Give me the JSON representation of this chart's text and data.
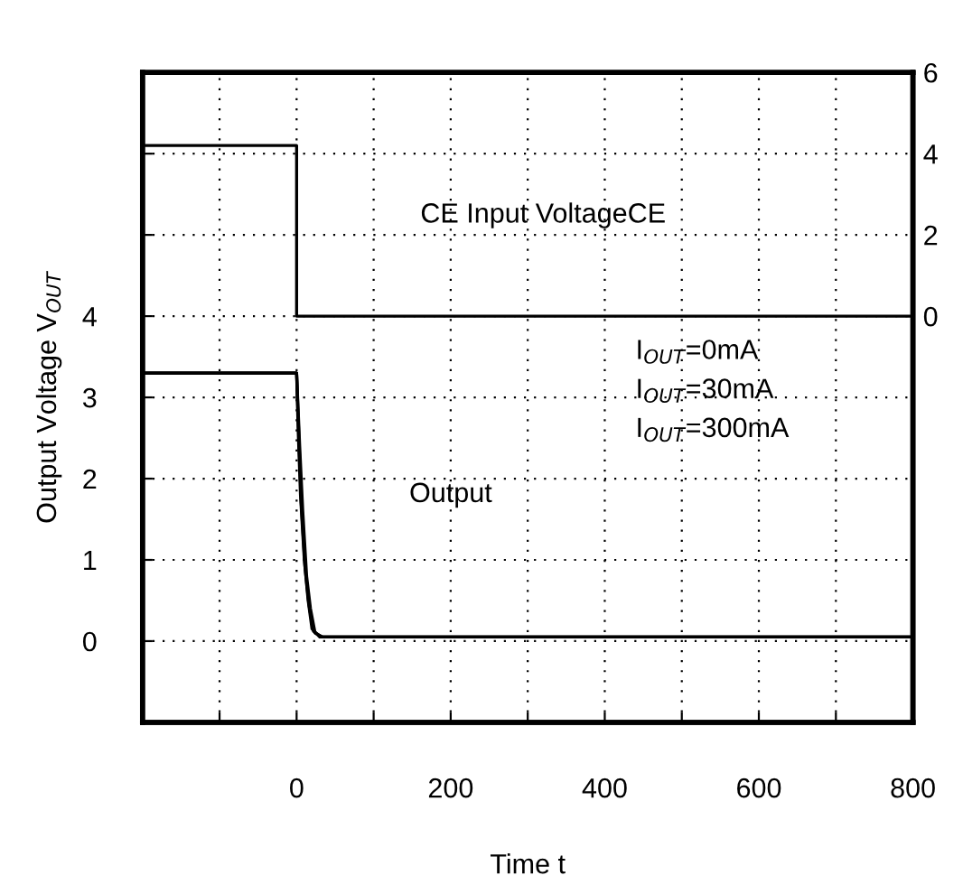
{
  "chart_data": {
    "type": "line",
    "xlabel": "Time t",
    "ylabel": "Output Voltage V$_{OUT}$",
    "series": [
      {
        "color": "#000000",
        "x": [
          -200,
          0,
          2,
          5,
          10,
          15,
          20,
          30,
          800
        ],
        "values": [
          3.3,
          3.3,
          2.6,
          1.8,
          1.0,
          0.5,
          0.15,
          0.05,
          0.05
        ]
      },
      {
        "color": "#000000",
        "x": [
          -200,
          0,
          3,
          6,
          11,
          16,
          22,
          32,
          800
        ],
        "values": [
          3.3,
          3.3,
          2.5,
          1.7,
          0.9,
          0.45,
          0.12,
          0.05,
          0.05
        ]
      },
      {
        "color": "#000000",
        "x": [
          -200,
          0,
          4,
          8,
          13,
          18,
          24,
          34,
          800
        ],
        "values": [
          3.3,
          3.3,
          2.4,
          1.6,
          0.8,
          0.4,
          0.1,
          0.05,
          0.05
        ]
      },
      {
        "color": "#000000",
        "axis": "y2",
        "x": [
          -200,
          0,
          0,
          800
        ],
        "values": [
          4.2,
          4.2,
          0,
          0
        ]
      }
    ],
    "xlim": [
      -200,
      800
    ],
    "xticks": [
      {
        "value": -200,
        "label": null
      },
      {
        "value": -100,
        "label": null
      },
      0,
      {
        "value": 100,
        "label": null
      },
      200,
      {
        "value": 300,
        "label": null
      },
      400,
      {
        "value": 500,
        "label": null
      },
      600,
      {
        "value": 700,
        "label": null
      },
      800
    ],
    "ylim": [
      -1,
      7
    ],
    "yticks": [
      {
        "value": -1,
        "label": null
      },
      0,
      1,
      2,
      3,
      4,
      {
        "value": 5,
        "label": null
      },
      {
        "value": 6,
        "label": null
      },
      {
        "value": 7,
        "label": null
      }
    ],
    "y2lim": [
      -10,
      6
    ],
    "y2ticks": [
      0,
      2,
      4,
      6
    ],
    "grid": true,
    "line_style": "solid",
    "marker": "none",
    "annotations": [
      "CE Input VoltageCE",
      "Output",
      "I$_{OUT}$=0mA",
      "I$_{OUT}$=30mA",
      "I$_{OUT}$=300mA"
    ]
  }
}
